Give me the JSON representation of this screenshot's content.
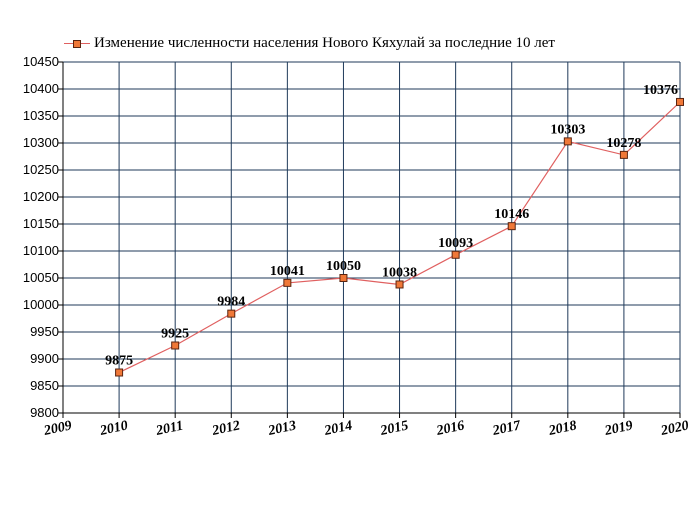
{
  "legend": {
    "label": "Изменение численности населения Нового Кяхулай за последние 10 лет"
  },
  "colors": {
    "line": "#e06060",
    "marker_fill": "#f07838",
    "marker_stroke": "#5a2410",
    "grid": "#1f3a5a"
  },
  "chart_data": {
    "type": "line",
    "title": "",
    "xlabel": "",
    "ylabel": "",
    "x_ticks": [
      "2009",
      "2010",
      "2011",
      "2012",
      "2013",
      "2014",
      "2015",
      "2016",
      "2017",
      "2018",
      "2019",
      "2020"
    ],
    "y_ticks": [
      "9800",
      "9850",
      "9900",
      "9950",
      "10000",
      "10050",
      "10100",
      "10150",
      "10200",
      "10250",
      "10300",
      "10350",
      "10400",
      "10450"
    ],
    "ylim": [
      9800,
      10450
    ],
    "xlim": [
      2009,
      2020
    ],
    "grid": true,
    "legend_position": "top-left",
    "series": [
      {
        "name": "Изменение численности населения Нового Кяхулай за последние 10 лет",
        "x": [
          2010,
          2011,
          2012,
          2013,
          2014,
          2015,
          2016,
          2017,
          2018,
          2019,
          2020
        ],
        "values": [
          9875,
          9925,
          9984,
          10041,
          10050,
          10038,
          10093,
          10146,
          10303,
          10278,
          10376
        ],
        "labels": [
          "9875",
          "9925",
          "9984",
          "10041",
          "10050",
          "10038",
          "10093",
          "10146",
          "10303",
          "10278",
          "10376"
        ]
      }
    ]
  }
}
